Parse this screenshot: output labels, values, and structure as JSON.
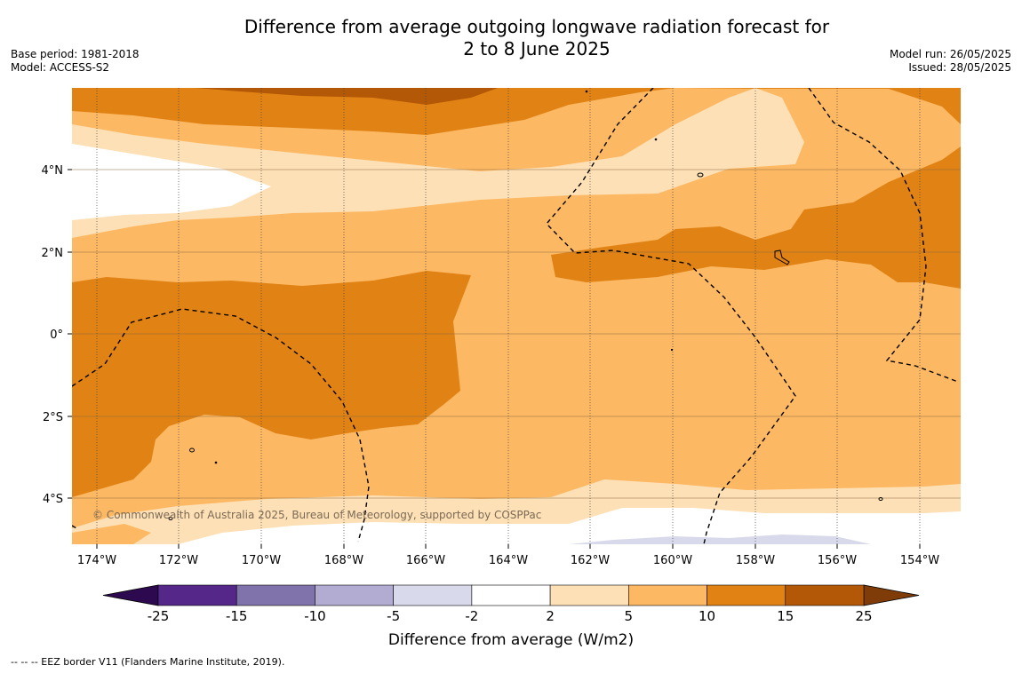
{
  "header": {
    "title_line1": "Difference from average outgoing longwave radiation forecast for",
    "title_line2": "2 to 8 June 2025",
    "base_period": "Base period: 1981-2018",
    "model": "Model: ACCESS-S2",
    "model_run": "Model run: 26/05/2025",
    "issued": "Issued: 28/05/2025"
  },
  "map": {
    "lon_ticks": [
      "174°W",
      "172°W",
      "170°W",
      "168°W",
      "166°W",
      "164°W",
      "162°W",
      "160°W",
      "158°W",
      "156°W",
      "154°W"
    ],
    "lat_ticks": [
      "4°N",
      "2°N",
      "0°",
      "2°S",
      "4°S"
    ],
    "copyright": "© Commonwealth of Australia 2025, Bureau of Meteorology, supported by COSPPac"
  },
  "colorbar": {
    "title": "Difference from average (W/m2)",
    "labels": [
      "-25",
      "-15",
      "-10",
      "-5",
      "-2",
      "2",
      "5",
      "10",
      "15",
      "25"
    ],
    "colors": {
      "below_min": "#2d0a4f",
      "c1": "#542788",
      "c2": "#8073ac",
      "c3": "#b2abd2",
      "c4": "#d8daeb",
      "c5": "#ffffff",
      "c6": "#fee0b6",
      "c7": "#fdb863",
      "c8": "#e08214",
      "c9": "#b35806",
      "above_max": "#7f3b08"
    }
  },
  "footnote": "--  --  -- EEZ border V11 (Flanders Marine Institute, 2019)."
}
